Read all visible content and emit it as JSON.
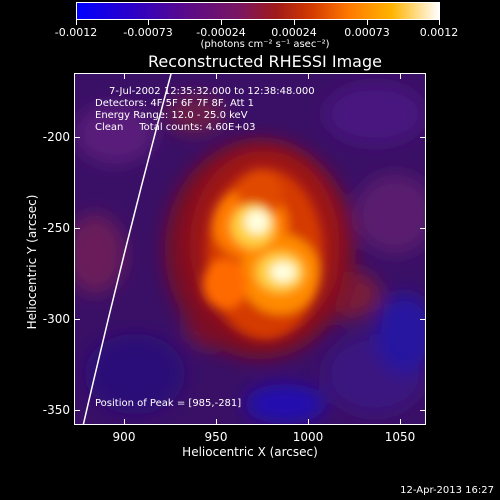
{
  "colorbar": {
    "tick_labels": [
      "-0.0012",
      "-0.00073",
      "-0.00024",
      "0.00024",
      "0.00073",
      "0.0012"
    ],
    "units": "(photons cm⁻² s⁻¹ asec⁻²)"
  },
  "title": "Reconstructed RHESSI Image",
  "info": {
    "time": "7-Jul-2002 12:35:32.000 to 12:38:48.000",
    "detectors": "Detectors: 4F 5F 6F 7F 8F, Att 1",
    "energy": "Energy Range: 12.0 - 25.0 keV",
    "clean": "Clean     Total counts: 4.60E+03"
  },
  "peak": "Position of Peak = [985,-281]",
  "axes": {
    "x_title": "Heliocentric X (arcsec)",
    "y_title": "Heliocentric Y (arcsec)",
    "x_ticks": [
      "900",
      "950",
      "1000",
      "1050"
    ],
    "y_ticks": [
      "-200",
      "-250",
      "-300",
      "-350"
    ]
  },
  "footer_date": "12-Apr-2013 16:27"
}
